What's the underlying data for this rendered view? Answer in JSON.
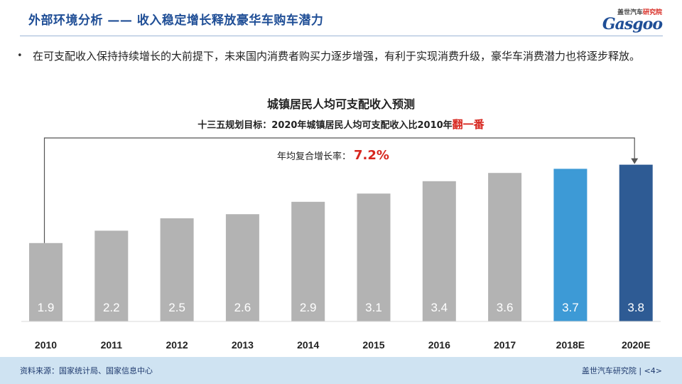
{
  "header": {
    "title": "外部环境分析 —— 收入稳定增长释放豪华车购车潜力",
    "logo_cn_1": "盖世汽车",
    "logo_cn_2": "研究院",
    "logo_en": "Gasgoo"
  },
  "bullet": "在可支配收入保持持续增长的大前提下，未来国内消费者购买力逐步增强，有利于实现消费升级，豪华车消费潜力也将逐步释放。",
  "target": {
    "text": "十三五规划目标：2020年城镇居民人均可支配收入比2010年",
    "highlight": "翻一番"
  },
  "cagr": {
    "label": "年均复合增长率：",
    "value": "7.2%"
  },
  "colors": {
    "gray_bar": "#b3b3b3",
    "forecast_1": "#3d9ad6",
    "forecast_2": "#2e5b94",
    "title_blue": "#1f4e96",
    "accent_red": "#d7261e"
  },
  "chart_data": {
    "type": "bar",
    "title": "城镇居民人均可支配收入预测",
    "categories": [
      "2010",
      "2011",
      "2012",
      "2013",
      "2014",
      "2015",
      "2016",
      "2017",
      "2018E",
      "2020E"
    ],
    "values": [
      1.9,
      2.2,
      2.5,
      2.6,
      2.9,
      3.1,
      3.4,
      3.6,
      3.7,
      3.8
    ],
    "value_labels": [
      "1.9",
      "2.2",
      "2.5",
      "2.6",
      "2.9",
      "3.1",
      "3.4",
      "3.6",
      "3.7",
      "3.8"
    ],
    "bar_colors": [
      "#b3b3b3",
      "#b3b3b3",
      "#b3b3b3",
      "#b3b3b3",
      "#b3b3b3",
      "#b3b3b3",
      "#b3b3b3",
      "#b3b3b3",
      "#3d9ad6",
      "#2e5b94"
    ],
    "ylim": [
      0,
      4.0
    ],
    "grid": false,
    "xlabel": "",
    "ylabel": ""
  },
  "footer": {
    "source": "资料来源：国家统计局、国家信息中心",
    "org": "盖世汽车研究院 | <4>"
  }
}
